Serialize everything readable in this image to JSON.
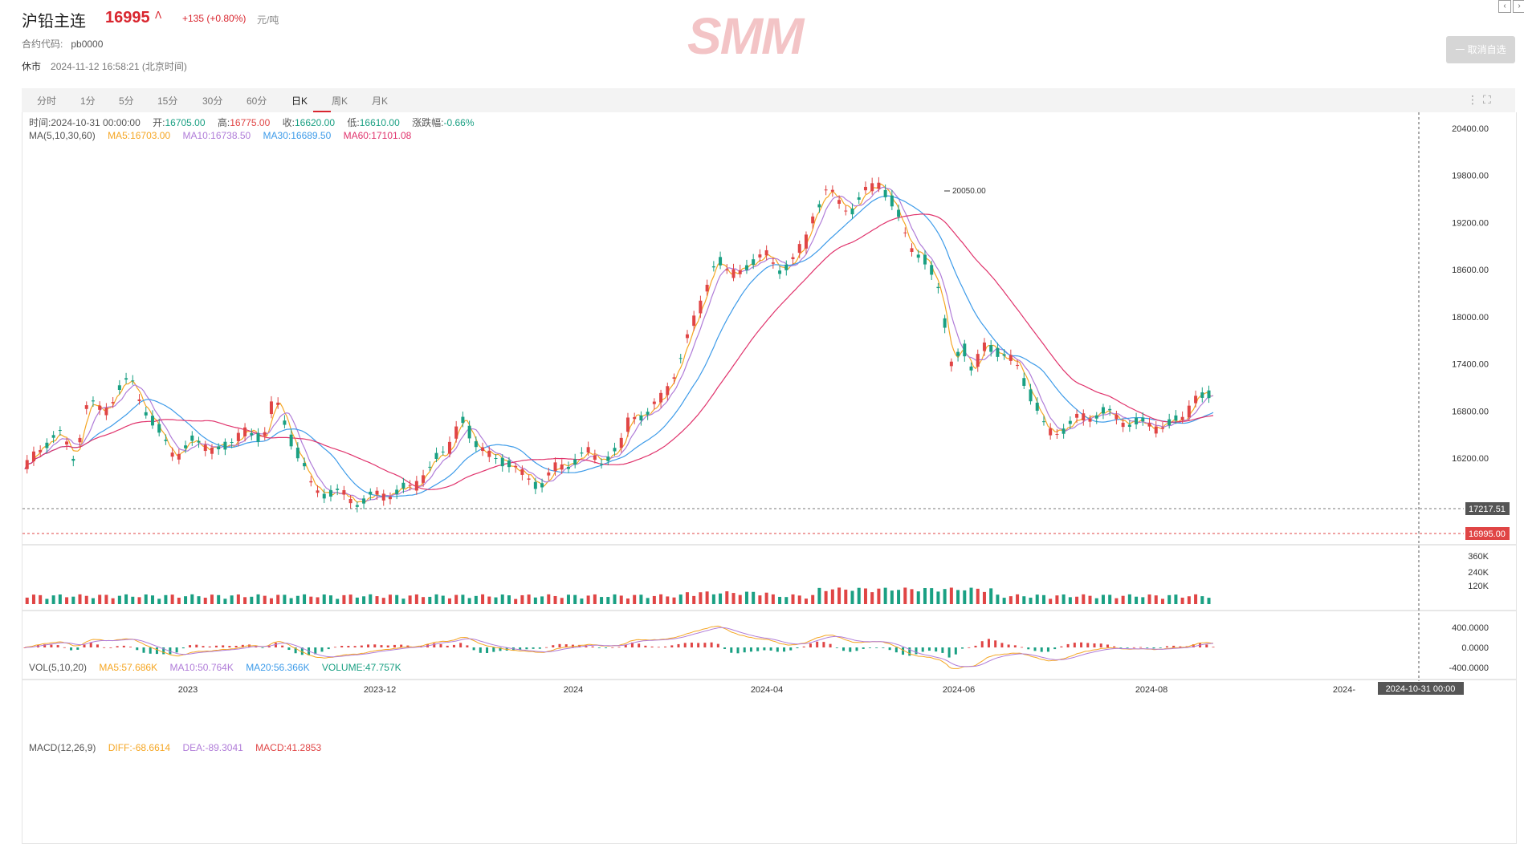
{
  "header": {
    "title": "沪铅主连",
    "price": "16995",
    "arrow": "ᐱ",
    "change": "+135 (+0.80%)",
    "unit": "元/吨",
    "code_label": "合约代码:",
    "code_value": "pb0000",
    "status": "休市",
    "datetime": "2024-11-12 16:58:21 (北京时间)",
    "logo": "SMM",
    "fav_button": "一 取消自选"
  },
  "tabs": [
    "分时",
    "1分",
    "5分",
    "15分",
    "30分",
    "60分",
    "日K",
    "周K",
    "月K"
  ],
  "active_tab": "日K",
  "ohlc_info": {
    "time_label": "时间:",
    "time": "2024-10-31 00:00:00",
    "open_label": "开:",
    "open": "16705.00",
    "high_label": "高:",
    "high": "16775.00",
    "close_label": "收:",
    "close": "16620.00",
    "low_label": "低:",
    "low": "16610.00",
    "chg_label": "涨跌幅:",
    "chg": "-0.66%"
  },
  "ma_info": {
    "title": "MA(5,10,30,60)",
    "ma5": "MA5:16703.00",
    "ma10": "MA10:16738.50",
    "ma30": "MA30:16689.50",
    "ma60": "MA60:17101.08"
  },
  "vol_info": {
    "title": "VOL(5,10,20)",
    "ma5": "MA5:57.686K",
    "ma10": "MA10:50.764K",
    "ma20": "MA20:56.366K",
    "volume": "VOLUME:47.757K"
  },
  "macd_info": {
    "title": "MACD(12,26,9)",
    "diff": "DIFF:-68.6614",
    "dea": "DEA:-89.3041",
    "macd": "MACD:41.2853"
  },
  "colors": {
    "up": "#e04545",
    "down": "#1aa083",
    "ma5": "#f5a623",
    "ma10": "#b07cd8",
    "ma30": "#3d9be9",
    "ma60": "#e0336c",
    "label_gray": "#555555"
  },
  "chart_data": {
    "type": "candlestick",
    "price_axis": {
      "ticks": [
        16200,
        16800,
        17400,
        18000,
        18600,
        19200,
        19800,
        20400
      ],
      "tick_labels": [
        "16200.00",
        "16800.00",
        "17400.00",
        "18000.00",
        "18600.00",
        "19200.00",
        "19800.00",
        "20400.00"
      ]
    },
    "x_ticks": [
      "2023",
      "2023-12",
      "2024",
      "2024-04",
      "2024-06",
      "2024-08",
      "2024-"
    ],
    "crosshair_label": "2024-10-31 00:00",
    "price_markers": {
      "crosshair": "17217.51",
      "last": "16995.00"
    },
    "peak_label": "20050.00",
    "volume_axis": {
      "tick_labels": [
        "120K",
        "240K",
        "360K"
      ]
    },
    "macd_axis": {
      "tick_labels": [
        "400.0000",
        "0.0000",
        "-400.0000"
      ]
    },
    "series": [
      {
        "name": "close",
        "points": [
          [
            0,
            16060
          ],
          [
            8,
            16380
          ],
          [
            15,
            16520
          ],
          [
            22,
            16200
          ],
          [
            28,
            16900
          ],
          [
            35,
            16780
          ],
          [
            42,
            17080
          ],
          [
            48,
            17180
          ],
          [
            53,
            16900
          ],
          [
            60,
            16540
          ],
          [
            68,
            16220
          ],
          [
            76,
            16430
          ],
          [
            84,
            16310
          ],
          [
            92,
            16360
          ],
          [
            100,
            16540
          ],
          [
            108,
            16460
          ],
          [
            113,
            16960
          ],
          [
            118,
            16640
          ],
          [
            124,
            16240
          ],
          [
            130,
            15820
          ],
          [
            140,
            15750
          ],
          [
            152,
            15650
          ],
          [
            164,
            15750
          ],
          [
            176,
            15820
          ],
          [
            186,
            16180
          ],
          [
            192,
            16310
          ],
          [
            198,
            16720
          ],
          [
            204,
            16380
          ],
          [
            212,
            16220
          ],
          [
            220,
            16130
          ],
          [
            226,
            15980
          ],
          [
            234,
            15860
          ],
          [
            242,
            16080
          ],
          [
            248,
            16160
          ],
          [
            256,
            16250
          ],
          [
            262,
            16190
          ],
          [
            270,
            16280
          ],
          [
            275,
            16800
          ],
          [
            282,
            16700
          ],
          [
            290,
            17050
          ],
          [
            296,
            17300
          ],
          [
            302,
            17860
          ],
          [
            308,
            18250
          ],
          [
            314,
            18750
          ],
          [
            320,
            18540
          ],
          [
            324,
            18560
          ],
          [
            330,
            18700
          ],
          [
            336,
            18800
          ],
          [
            342,
            18600
          ],
          [
            348,
            18700
          ],
          [
            354,
            18900
          ],
          [
            358,
            19350
          ],
          [
            364,
            19600
          ],
          [
            370,
            19450
          ],
          [
            376,
            19380
          ],
          [
            382,
            19580
          ],
          [
            388,
            19750
          ],
          [
            391,
            19580
          ],
          [
            395,
            19350
          ],
          [
            402,
            18920
          ],
          [
            410,
            18650
          ],
          [
            416,
            18280
          ],
          [
            420,
            17400
          ],
          [
            426,
            17600
          ],
          [
            430,
            17300
          ],
          [
            436,
            17650
          ],
          [
            442,
            17550
          ],
          [
            450,
            17400
          ],
          [
            458,
            16950
          ],
          [
            464,
            16500
          ],
          [
            472,
            16600
          ],
          [
            480,
            16700
          ],
          [
            488,
            16800
          ],
          [
            496,
            16700
          ],
          [
            504,
            16650
          ],
          [
            512,
            16600
          ],
          [
            520,
            16640
          ],
          [
            526,
            16700
          ],
          [
            532,
            16995
          ]
        ]
      }
    ]
  }
}
